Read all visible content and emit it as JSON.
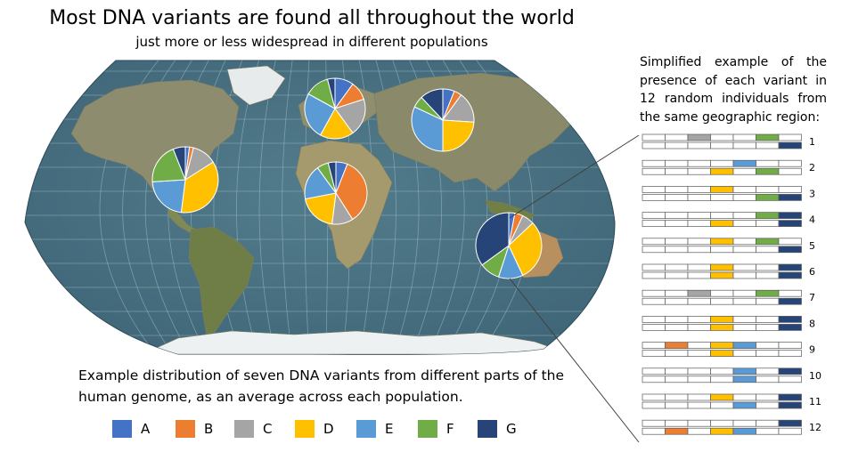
{
  "title": "Most DNA variants are found all throughout the world",
  "subtitle": "just more or less widespread in different populations",
  "side_text": "Simplified example of the presence of each variant in 12 random individuals from the same geographic region:",
  "caption": "Example distribution of seven DNA variants from different parts of the human genome, as an average across each population.",
  "variants": [
    {
      "label": "A",
      "color": "#4472C4"
    },
    {
      "label": "B",
      "color": "#ED7D31"
    },
    {
      "label": "C",
      "color": "#A5A5A5"
    },
    {
      "label": "D",
      "color": "#FFC000"
    },
    {
      "label": "E",
      "color": "#5B9BD5"
    },
    {
      "label": "F",
      "color": "#70AD47"
    },
    {
      "label": "G",
      "color": "#264478"
    }
  ],
  "chart_data": {
    "type": "pie",
    "populations": [
      {
        "name": "",
        "values": [
          0.02,
          0.02,
          0.12,
          0.36,
          0.22,
          0.2,
          0.06
        ]
      },
      {
        "name": "",
        "values": [
          0.1,
          0.1,
          0.2,
          0.18,
          0.25,
          0.13,
          0.04
        ]
      },
      {
        "name": "",
        "values": [
          0.06,
          0.35,
          0.11,
          0.2,
          0.18,
          0.06,
          0.04
        ]
      },
      {
        "name": "",
        "values": [
          0.06,
          0.04,
          0.16,
          0.24,
          0.32,
          0.06,
          0.12
        ]
      },
      {
        "name": "",
        "values": [
          0.03,
          0.04,
          0.06,
          0.3,
          0.12,
          0.1,
          0.35
        ]
      }
    ]
  },
  "individuals": [
    {
      "label": "1",
      "top": [
        null,
        null,
        "C",
        null,
        null,
        "F",
        null
      ],
      "bottom": [
        null,
        null,
        null,
        null,
        null,
        null,
        "G"
      ]
    },
    {
      "label": "2",
      "top": [
        null,
        null,
        null,
        null,
        "E",
        null,
        null
      ],
      "bottom": [
        null,
        null,
        null,
        "D",
        null,
        "F",
        null
      ]
    },
    {
      "label": "3",
      "top": [
        null,
        null,
        null,
        "D",
        null,
        null,
        null
      ],
      "bottom": [
        null,
        null,
        null,
        null,
        null,
        "F",
        "G"
      ]
    },
    {
      "label": "4",
      "top": [
        null,
        null,
        null,
        null,
        null,
        "F",
        "G"
      ],
      "bottom": [
        null,
        null,
        null,
        "D",
        null,
        null,
        "G"
      ]
    },
    {
      "label": "5",
      "top": [
        null,
        null,
        null,
        "D",
        null,
        "F",
        null
      ],
      "bottom": [
        null,
        null,
        null,
        null,
        null,
        null,
        "G"
      ]
    },
    {
      "label": "6",
      "top": [
        null,
        null,
        null,
        "D",
        null,
        null,
        "G"
      ],
      "bottom": [
        null,
        null,
        null,
        "D",
        null,
        null,
        "G"
      ]
    },
    {
      "label": "7",
      "top": [
        null,
        null,
        "C",
        null,
        null,
        "F",
        null
      ],
      "bottom": [
        null,
        null,
        null,
        null,
        null,
        null,
        "G"
      ]
    },
    {
      "label": "8",
      "top": [
        null,
        null,
        null,
        "D",
        null,
        null,
        "G"
      ],
      "bottom": [
        null,
        null,
        null,
        "D",
        null,
        null,
        "G"
      ]
    },
    {
      "label": "9",
      "top": [
        null,
        "B",
        null,
        "D",
        "E",
        null,
        null
      ],
      "bottom": [
        null,
        null,
        null,
        "D",
        null,
        null,
        null
      ]
    },
    {
      "label": "10",
      "top": [
        null,
        null,
        null,
        null,
        "E",
        null,
        "G"
      ],
      "bottom": [
        null,
        null,
        null,
        null,
        "E",
        null,
        null
      ]
    },
    {
      "label": "11",
      "top": [
        null,
        null,
        null,
        "D",
        null,
        null,
        "G"
      ],
      "bottom": [
        null,
        null,
        null,
        null,
        "E",
        null,
        "G"
      ]
    },
    {
      "label": "12",
      "top": [
        null,
        null,
        null,
        null,
        null,
        null,
        "G"
      ],
      "bottom": [
        null,
        "B",
        null,
        "D",
        "E",
        null,
        null
      ]
    }
  ]
}
